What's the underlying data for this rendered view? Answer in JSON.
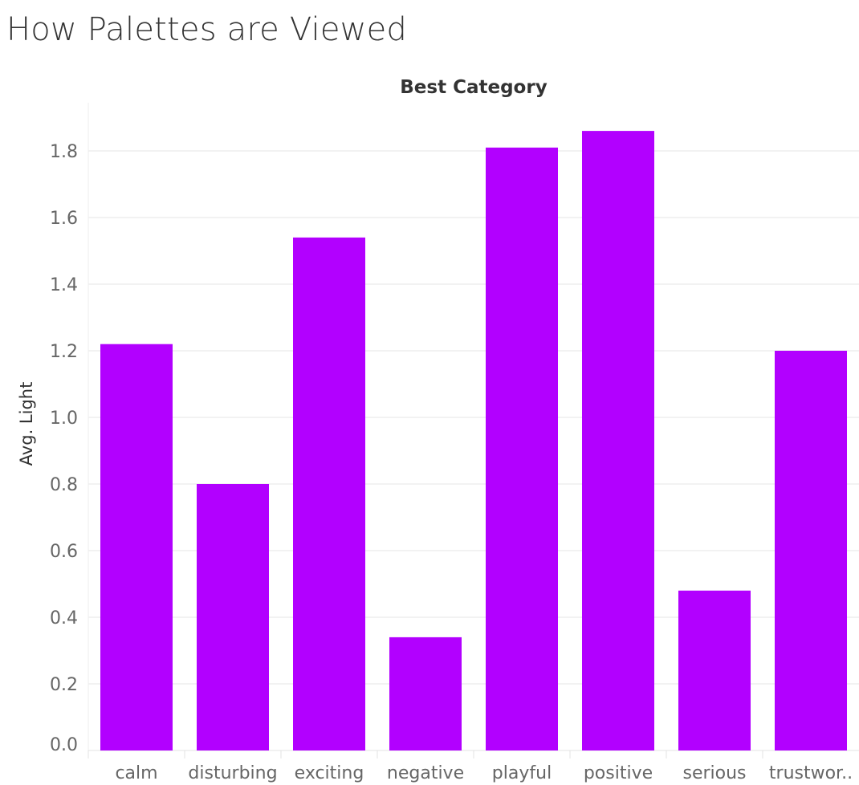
{
  "title": "How Palettes are Viewed",
  "chart_data": {
    "type": "bar",
    "header": "Best Category",
    "xlabel": "",
    "ylabel": "Avg. Light",
    "categories": [
      "calm",
      "disturbing",
      "exciting",
      "negative",
      "playful",
      "positive",
      "serious",
      "trustwor.."
    ],
    "values": [
      1.22,
      0.8,
      1.54,
      0.34,
      1.81,
      1.86,
      0.48,
      1.2
    ],
    "ylim": [
      0,
      1.86
    ],
    "yticks": [
      "0.0",
      "0.2",
      "0.4",
      "0.6",
      "0.8",
      "1.0",
      "1.2",
      "1.4",
      "1.6",
      "1.8"
    ],
    "grid": true,
    "colors": {
      "bar": "#B200FF",
      "grid": "#EEEEEE"
    }
  }
}
